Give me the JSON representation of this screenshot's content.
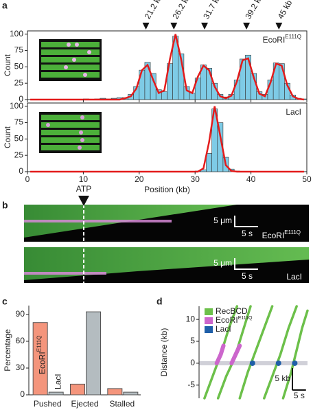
{
  "panel_labels": [
    "a",
    "b",
    "c",
    "d"
  ],
  "chart_data": [
    {
      "type": "histogram",
      "label": "EcoRI",
      "label_sup": "E111Q",
      "ylabel": "Count",
      "color": "#7ecbe6",
      "ylim": [
        0,
        105
      ],
      "yticks": [
        0,
        25,
        50,
        75,
        100
      ],
      "xlim": [
        0,
        50
      ],
      "bins": [
        0,
        1,
        2,
        3,
        4,
        5,
        6,
        7,
        8,
        9,
        10,
        11,
        12,
        13,
        14,
        15,
        16,
        17,
        18,
        19,
        20,
        21,
        22,
        23,
        24,
        25,
        26,
        27,
        28,
        29,
        30,
        31,
        32,
        33,
        34,
        35,
        36,
        37,
        38,
        39,
        40,
        41,
        42,
        43,
        44,
        45,
        46,
        47,
        48,
        49,
        50
      ],
      "counts": [
        0,
        0,
        0,
        0,
        0,
        0,
        0,
        0,
        0,
        0,
        1,
        0,
        1,
        2,
        1,
        2,
        3,
        3,
        8,
        20,
        45,
        57,
        40,
        15,
        12,
        55,
        97,
        70,
        20,
        10,
        33,
        53,
        48,
        25,
        8,
        4,
        8,
        30,
        62,
        68,
        40,
        12,
        8,
        30,
        56,
        55,
        25,
        7,
        2,
        1
      ],
      "fit": {
        "color": "#e31b1b",
        "x": [
          0.5,
          1.5,
          2.5,
          3.5,
          4.5,
          5.5,
          6.5,
          7.5,
          8.5,
          9.5,
          10.5,
          11.5,
          12.5,
          13.5,
          14.5,
          15.5,
          16.5,
          17.5,
          18.5,
          19.5,
          20.5,
          21.5,
          22.5,
          23.5,
          24.5,
          25.5,
          26.5,
          27.5,
          28.5,
          29.5,
          30.5,
          31.5,
          32.5,
          33.5,
          34.5,
          35.5,
          36.5,
          37.5,
          38.5,
          39.5,
          40.5,
          41.5,
          42.5,
          43.5,
          44.5,
          45.5,
          46.5,
          47.5,
          48.5,
          49.5
        ],
        "values": [
          0,
          0,
          0,
          0,
          0,
          0,
          0,
          0,
          0,
          0,
          0,
          0,
          0,
          0,
          0,
          0,
          0,
          2,
          5,
          17,
          45,
          53,
          30,
          10,
          14,
          62,
          100,
          62,
          14,
          10,
          35,
          52,
          45,
          20,
          5,
          2,
          6,
          28,
          60,
          63,
          34,
          9,
          5,
          26,
          55,
          52,
          22,
          5,
          1,
          0
        ]
      },
      "annotations": [
        {
          "x": 21.2,
          "label": "21.2 kb"
        },
        {
          "x": 26.2,
          "label": "26.2 kb"
        },
        {
          "x": 31.7,
          "label": "31.7 kb"
        },
        {
          "x": 39.2,
          "label": "39.2 kb"
        },
        {
          "x": 45,
          "label": "45 kb"
        }
      ]
    },
    {
      "type": "histogram",
      "label": "LacI",
      "ylabel": "Count",
      "xlabel": "Position (kb)",
      "color": "#7ecbe6",
      "ylim": [
        0,
        105
      ],
      "yticks": [
        0,
        25,
        50,
        75,
        100
      ],
      "xlim": [
        0,
        50
      ],
      "xticks": [
        0,
        10,
        20,
        30,
        40,
        50
      ],
      "bins": [
        0,
        1,
        2,
        3,
        4,
        5,
        6,
        7,
        8,
        9,
        10,
        11,
        12,
        13,
        14,
        15,
        16,
        17,
        18,
        19,
        20,
        21,
        22,
        23,
        24,
        25,
        26,
        27,
        28,
        29,
        30,
        31,
        32,
        33,
        34,
        35,
        36,
        37,
        38,
        39,
        40,
        41,
        42,
        43,
        44,
        45,
        46,
        47,
        48,
        49,
        50
      ],
      "counts": [
        0,
        0,
        0,
        0,
        0,
        0,
        0,
        0,
        0,
        0,
        0,
        0,
        0,
        0,
        0,
        0,
        0,
        0,
        0,
        0,
        0,
        0,
        0,
        0,
        0,
        0,
        0,
        0,
        0,
        0,
        1,
        3,
        28,
        96,
        75,
        22,
        4,
        1,
        0,
        0,
        0,
        0,
        0,
        0,
        0,
        0,
        0,
        0,
        0,
        0
      ],
      "fit": {
        "color": "#e31b1b",
        "x": [
          0.5,
          1.5,
          2.5,
          3.5,
          4.5,
          5.5,
          6.5,
          7.5,
          8.5,
          9.5,
          10.5,
          11.5,
          12.5,
          13.5,
          14.5,
          15.5,
          16.5,
          17.5,
          18.5,
          19.5,
          20.5,
          21.5,
          22.5,
          23.5,
          24.5,
          25.5,
          26.5,
          27.5,
          28.5,
          29.5,
          30.5,
          31.5,
          32.5,
          33.5,
          34.5,
          35.5,
          36.5,
          37.5,
          38.5,
          39.5,
          40.5,
          41.5,
          42.5,
          43.5,
          44.5,
          45.5,
          46.5,
          47.5,
          48.5,
          49.5
        ],
        "values": [
          0,
          0,
          0,
          0,
          0,
          0,
          0,
          0,
          0,
          0,
          0,
          0,
          0,
          0,
          0,
          0,
          0,
          0,
          0,
          0,
          0,
          0,
          0,
          0,
          0,
          0,
          0,
          0,
          0,
          0,
          0,
          5,
          45,
          100,
          55,
          10,
          1,
          0,
          0,
          0,
          0,
          0,
          0,
          0,
          0,
          0,
          0,
          0,
          0,
          0
        ]
      }
    },
    {
      "type": "bar",
      "ylabel": "Percentage",
      "categories": [
        "Pushed",
        "Ejected",
        "Stalled"
      ],
      "ylim": [
        0,
        100
      ],
      "yticks": [
        0,
        30,
        60,
        90
      ],
      "series": [
        {
          "name": "EcoRI",
          "name_sup": "E111Q",
          "color": "#f4957c",
          "values": [
            81,
            12,
            7
          ]
        },
        {
          "name": "LacI",
          "color": "#b4bcc0",
          "values": [
            3,
            93,
            3
          ]
        }
      ]
    },
    {
      "type": "line",
      "ylabel": "Distance (kb)",
      "ylim": [
        -8,
        13
      ],
      "yticks": [
        -5,
        0,
        5,
        10
      ],
      "xlim": [
        0,
        40
      ],
      "scalebar": {
        "x": 5,
        "y": 5,
        "x_label": "5 s",
        "y_label": "5 kb"
      },
      "series": [
        {
          "name": "RecBCD",
          "color": "#6cc04a",
          "x": [
            2,
            5,
            8,
            11,
            14,
            null,
            7,
            10,
            13,
            16,
            19,
            null,
            15,
            18,
            21,
            24,
            27,
            null,
            24,
            27,
            30,
            33,
            36,
            null,
            31,
            34,
            36,
            38,
            40
          ],
          "values": [
            -8,
            -3,
            2,
            8,
            13,
            null,
            -8,
            -3,
            1,
            7,
            13,
            null,
            -8,
            -2,
            3,
            8,
            13,
            null,
            -8,
            -3,
            2,
            8,
            13,
            null,
            -8,
            -2,
            3,
            8,
            12
          ]
        },
        {
          "name": "EcoRI",
          "name_sup": "E111Q",
          "color": "#cc66cc",
          "x": [
            6.5,
            8,
            9,
            null,
            12,
            13.5,
            15
          ],
          "values": [
            0,
            2,
            4,
            null,
            0,
            2,
            4
          ]
        },
        {
          "name": "LacI",
          "color": "#1f5fa8",
          "mode": "markers",
          "x": [
            19.7,
            29.3,
            35.3
          ],
          "values": [
            0,
            0,
            0
          ]
        }
      ]
    }
  ],
  "panel_b": {
    "arrow_label": "ATP",
    "kymographs": [
      {
        "label": "EcoRI",
        "label_sup": "E111Q",
        "y_scale": "5 μm",
        "x_scale": "5 s"
      },
      {
        "label": "LacI",
        "y_scale": "5 μm",
        "x_scale": "5 s"
      }
    ]
  }
}
